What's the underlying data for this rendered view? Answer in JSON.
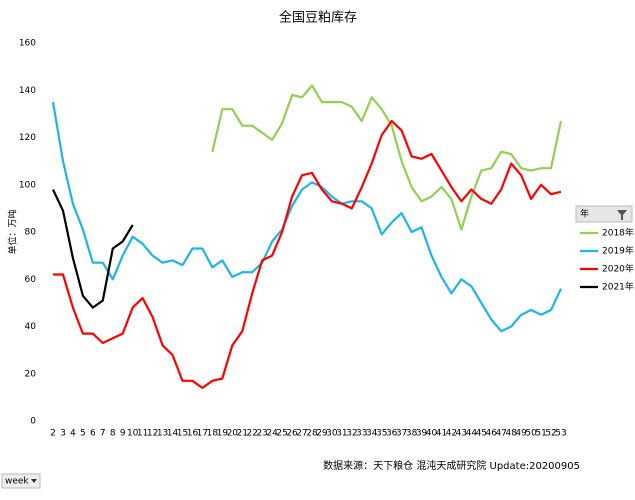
{
  "chart_data": {
    "type": "line",
    "title": "全国豆粕库存",
    "y_label": "单位：万吨",
    "source": "数据来源：天下粮仓 混沌天成研究院 Update:20200905",
    "legend_title": "年",
    "filter_button": "week",
    "legend_position": "right",
    "categories": [
      "2",
      "3",
      "4",
      "5",
      "6",
      "7",
      "8",
      "9",
      "10",
      "11",
      "12",
      "13",
      "14",
      "15",
      "16",
      "17",
      "18",
      "19",
      "20",
      "21",
      "22",
      "23",
      "24",
      "25",
      "26",
      "27",
      "28",
      "29",
      "30",
      "31",
      "32",
      "33",
      "34",
      "35",
      "36",
      "37",
      "38",
      "39",
      "40",
      "41",
      "42",
      "43",
      "44",
      "45",
      "46",
      "47",
      "48",
      "49",
      "50",
      "51",
      "52",
      "53"
    ],
    "ylim": [
      0,
      160
    ],
    "yticks": [
      0,
      20,
      40,
      60,
      80,
      100,
      120,
      140,
      160
    ],
    "series": [
      {
        "name": "2018年",
        "color": "#92d050",
        "values": [
          null,
          null,
          null,
          null,
          null,
          null,
          null,
          null,
          null,
          null,
          null,
          null,
          null,
          null,
          null,
          null,
          114,
          132,
          132,
          125,
          125,
          122,
          119,
          126,
          138,
          137,
          142,
          135,
          135,
          135,
          133,
          127,
          137,
          132,
          125,
          110,
          99,
          93,
          95,
          99,
          94,
          81,
          95,
          106,
          107,
          114,
          113,
          107,
          106,
          107,
          107,
          127
        ]
      },
      {
        "name": "2019年",
        "color": "#1eb4ea",
        "values": [
          135,
          110,
          92,
          81,
          67,
          67,
          60,
          70,
          78,
          75,
          70,
          67,
          68,
          66,
          73,
          73,
          65,
          68,
          61,
          63,
          63,
          67,
          76,
          81,
          91,
          98,
          101,
          99,
          95,
          92,
          93,
          93,
          90,
          79,
          84,
          88,
          80,
          82,
          70,
          61,
          54,
          60,
          57,
          50,
          43,
          38,
          40,
          45,
          47,
          45,
          47,
          56
        ]
      },
      {
        "name": "2020年",
        "color": "#ff0000",
        "values": [
          62,
          62,
          48,
          37,
          37,
          33,
          35,
          37,
          48,
          52,
          44,
          32,
          28,
          17,
          17,
          14,
          17,
          18,
          32,
          38,
          54,
          68,
          70,
          80,
          95,
          104,
          105,
          98,
          93,
          92,
          90,
          99,
          109,
          121,
          127,
          123,
          112,
          111,
          113,
          106,
          99,
          93,
          98,
          94,
          92,
          98,
          109,
          104,
          94,
          100,
          96,
          97
        ]
      },
      {
        "name": "2021年",
        "color": "#000000",
        "values": [
          98,
          89,
          69,
          53,
          48,
          51,
          73,
          76,
          83,
          null,
          null,
          null,
          null,
          null,
          null,
          null,
          null,
          null,
          null,
          null,
          null,
          null,
          null,
          null,
          null,
          null,
          null,
          null,
          null,
          null,
          null,
          null,
          null,
          null,
          null,
          null,
          null,
          null,
          null,
          null,
          null,
          null,
          null,
          null,
          null,
          null,
          null,
          null,
          null,
          null,
          null,
          null
        ]
      }
    ]
  }
}
